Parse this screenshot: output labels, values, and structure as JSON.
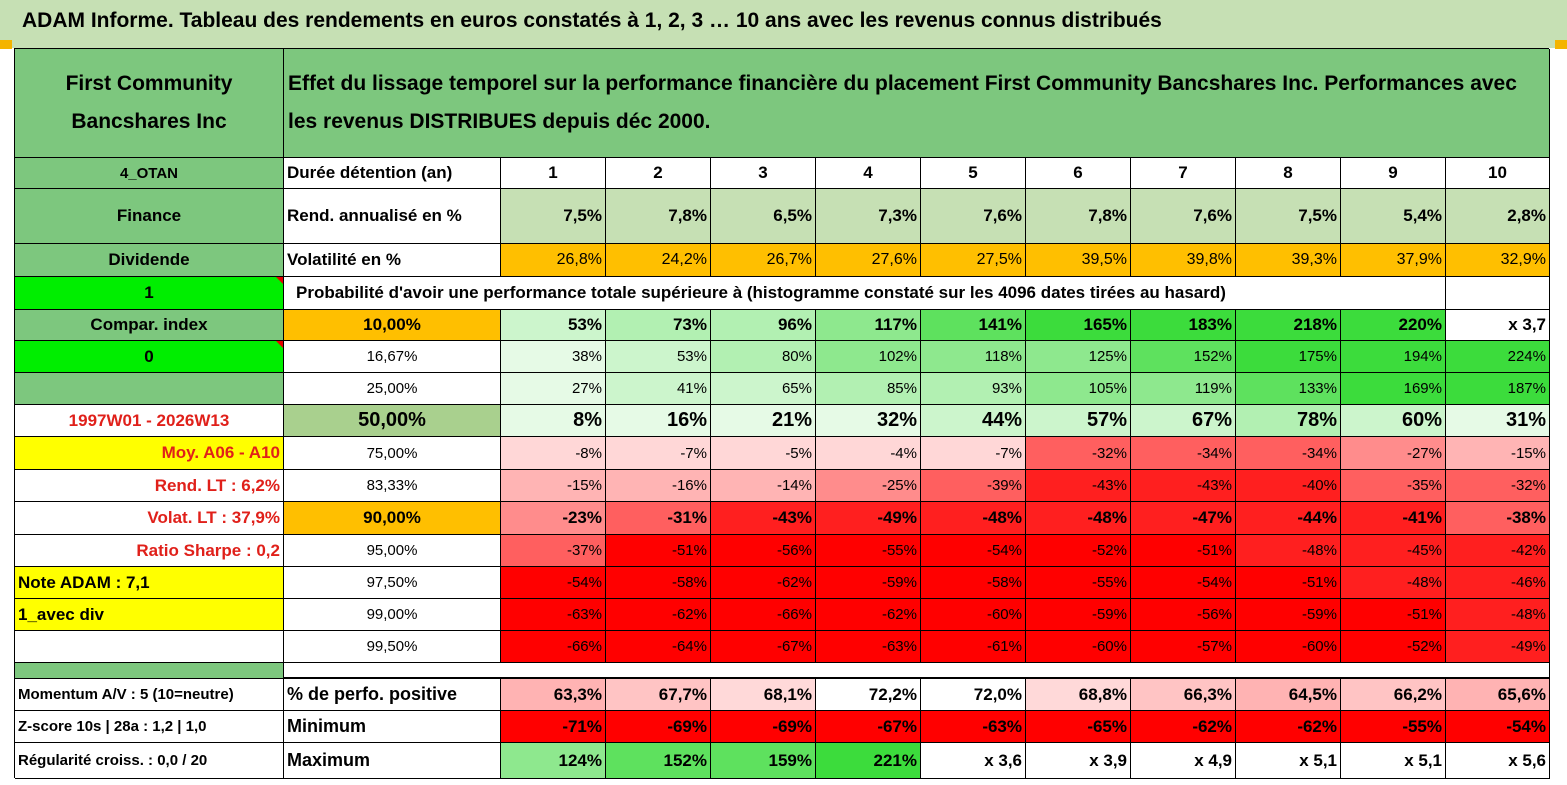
{
  "header": {
    "title": "ADAM Informe. Tableau des rendements en euros constatés à 1, 2, 3 … 10 ans avec les revenus connus distribués"
  },
  "colors": {
    "green_header": "#7dc77e",
    "bright_green": "#00ee00",
    "light_green": "#c6e0b4",
    "orange": "#ffbf00",
    "yellow": "#ffff00",
    "red": "#ff0000",
    "label_red": "#e0201a"
  },
  "company": {
    "name": "First Community Bancshares Inc",
    "title": "Effet du lissage temporel sur la performance financière du placement First Community Bancshares Inc. Performances avec les revenus DISTRIBUES depuis déc 2000."
  },
  "left": {
    "code": "4_OTAN",
    "sector": "Finance",
    "type": "Dividende",
    "flag1": "1",
    "compar": "Compar. index",
    "flag0": "0",
    "period": "1997W01 - 2026W13",
    "moy": "Moy. A06 - A10",
    "rend_lt": "Rend. LT :   6,2%",
    "volat_lt": "Volat. LT :   37,9%",
    "sharpe": "Ratio Sharpe :    0,2",
    "note": "Note ADAM : 7,1",
    "avec_div": "1_avec div",
    "momentum": "Momentum A/V : 5 (10=neutre)",
    "zscore": "Z-score 10s | 28a : 1,2 | 1,0",
    "regularite": "Régularité croiss. : 0,0 / 20"
  },
  "labels": {
    "duree": "Durée détention (an)",
    "rend": "Rend. annualisé en %",
    "vol": "Volatilité en %",
    "proba": "Probabilité d'avoir une performance totale supérieure à (histogramme constaté sur les 4096 dates tirées au hasard)",
    "positive": "% de perfo. positive",
    "minimum": "Minimum",
    "maximum": "Maximum"
  },
  "years": [
    "1",
    "2",
    "3",
    "4",
    "5",
    "6",
    "7",
    "8",
    "9",
    "10"
  ],
  "rend": [
    "7,5%",
    "7,8%",
    "6,5%",
    "7,3%",
    "7,6%",
    "7,8%",
    "7,6%",
    "7,5%",
    "5,4%",
    "2,8%"
  ],
  "vol": [
    "26,8%",
    "24,2%",
    "26,7%",
    "27,6%",
    "27,5%",
    "39,5%",
    "39,8%",
    "39,3%",
    "37,9%",
    "32,9%"
  ],
  "prob_rows": [
    {
      "pct": "10,00%",
      "values": [
        "53%",
        "73%",
        "96%",
        "117%",
        "141%",
        "165%",
        "183%",
        "218%",
        "220%",
        "x 3,7"
      ]
    },
    {
      "pct": "16,67%",
      "values": [
        "38%",
        "53%",
        "80%",
        "102%",
        "118%",
        "125%",
        "152%",
        "175%",
        "194%",
        "224%"
      ]
    },
    {
      "pct": "25,00%",
      "values": [
        "27%",
        "41%",
        "65%",
        "85%",
        "93%",
        "105%",
        "119%",
        "133%",
        "169%",
        "187%"
      ]
    },
    {
      "pct": "50,00%",
      "values": [
        "8%",
        "16%",
        "21%",
        "32%",
        "44%",
        "57%",
        "67%",
        "78%",
        "60%",
        "31%"
      ]
    },
    {
      "pct": "75,00%",
      "values": [
        "-8%",
        "-7%",
        "-5%",
        "-4%",
        "-7%",
        "-32%",
        "-34%",
        "-34%",
        "-27%",
        "-15%"
      ]
    },
    {
      "pct": "83,33%",
      "values": [
        "-15%",
        "-16%",
        "-14%",
        "-25%",
        "-39%",
        "-43%",
        "-43%",
        "-40%",
        "-35%",
        "-32%"
      ]
    },
    {
      "pct": "90,00%",
      "values": [
        "-23%",
        "-31%",
        "-43%",
        "-49%",
        "-48%",
        "-48%",
        "-47%",
        "-44%",
        "-41%",
        "-38%"
      ]
    },
    {
      "pct": "95,00%",
      "values": [
        "-37%",
        "-51%",
        "-56%",
        "-55%",
        "-54%",
        "-52%",
        "-51%",
        "-48%",
        "-45%",
        "-42%"
      ]
    },
    {
      "pct": "97,50%",
      "values": [
        "-54%",
        "-58%",
        "-62%",
        "-59%",
        "-58%",
        "-55%",
        "-54%",
        "-51%",
        "-48%",
        "-46%"
      ]
    },
    {
      "pct": "99,00%",
      "values": [
        "-63%",
        "-62%",
        "-66%",
        "-62%",
        "-60%",
        "-59%",
        "-56%",
        "-59%",
        "-51%",
        "-48%"
      ]
    },
    {
      "pct": "99,50%",
      "values": [
        "-66%",
        "-64%",
        "-67%",
        "-63%",
        "-61%",
        "-60%",
        "-57%",
        "-60%",
        "-52%",
        "-49%"
      ]
    }
  ],
  "positive": [
    "63,3%",
    "67,7%",
    "68,1%",
    "72,2%",
    "72,0%",
    "68,8%",
    "66,3%",
    "64,5%",
    "66,2%",
    "65,6%"
  ],
  "minimum": [
    "-71%",
    "-69%",
    "-69%",
    "-67%",
    "-63%",
    "-65%",
    "-62%",
    "-62%",
    "-55%",
    "-54%"
  ],
  "maximum": [
    "124%",
    "152%",
    "159%",
    "221%",
    "x 3,6",
    "x 3,9",
    "x 4,9",
    "x 5,1",
    "x 5,1",
    "x 5,6"
  ]
}
